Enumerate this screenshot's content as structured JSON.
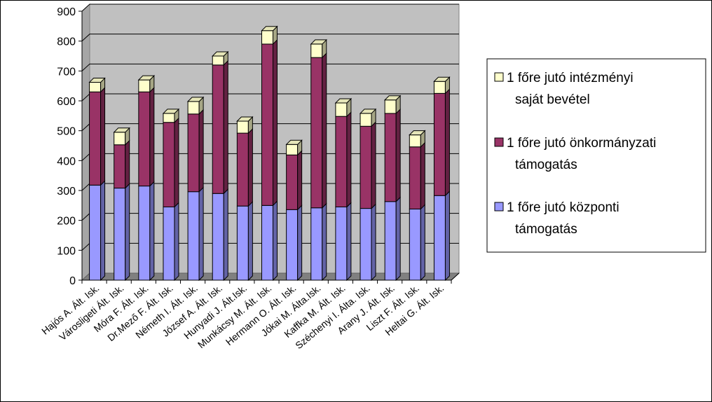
{
  "chart_data": {
    "type": "bar",
    "stacked": true,
    "three_d": true,
    "title": "",
    "xlabel": "",
    "ylabel": "",
    "ylim": [
      0,
      900
    ],
    "yticks": [
      0,
      100,
      200,
      300,
      400,
      500,
      600,
      700,
      800,
      900
    ],
    "grid": true,
    "legend_position": "right",
    "categories": [
      "Hajós A. Ált. Isk.",
      "Városligeti Ált. Isk.",
      "Móra F. Ált. Isk.",
      "Dr.Mező F. Ált. Isk.",
      "Németh I. Ált. Isk.",
      "József A. Ált. Isk.",
      "Hunyadi J. Ált.Isk.",
      "Munkácsy M. Ált. Isk.",
      "Hermann O. Ált. Isk.",
      "Jókai M. Álta.Isk.",
      "Kaffka M. Ált. Isk.",
      "Széchenyi I. Álta. Isk.",
      "Arany J. Ált. Isk.",
      "Liszt F. Ált. Isk.",
      "Heltai G. Ált. Isk."
    ],
    "series": [
      {
        "name": "1 főre jutó központi támogatás",
        "color": "#9999ff",
        "values": [
          318,
          308,
          315,
          245,
          296,
          290,
          248,
          250,
          236,
          242,
          245,
          240,
          263,
          238,
          283
        ]
      },
      {
        "name": "1 főre jutó önkormányzati támogatás",
        "color": "#993366",
        "values": [
          312,
          145,
          315,
          283,
          260,
          430,
          244,
          540,
          183,
          503,
          303,
          275,
          295,
          208,
          342
        ]
      },
      {
        "name": "1 főre jutó intézményi saját bevétel",
        "color": "#ffffcc",
        "values": [
          32,
          42,
          40,
          30,
          42,
          30,
          40,
          45,
          35,
          45,
          45,
          43,
          45,
          40,
          40
        ]
      }
    ]
  },
  "legend": {
    "entries": [
      {
        "series": 2,
        "lines": [
          "1 főre jutó intézményi",
          "saját bevétel"
        ]
      },
      {
        "series": 1,
        "lines": [
          "1 főre jutó önkormányzati",
          "támogatás"
        ]
      },
      {
        "series": 0,
        "lines": [
          "1 főre jutó központi",
          "támogatás"
        ]
      }
    ]
  }
}
